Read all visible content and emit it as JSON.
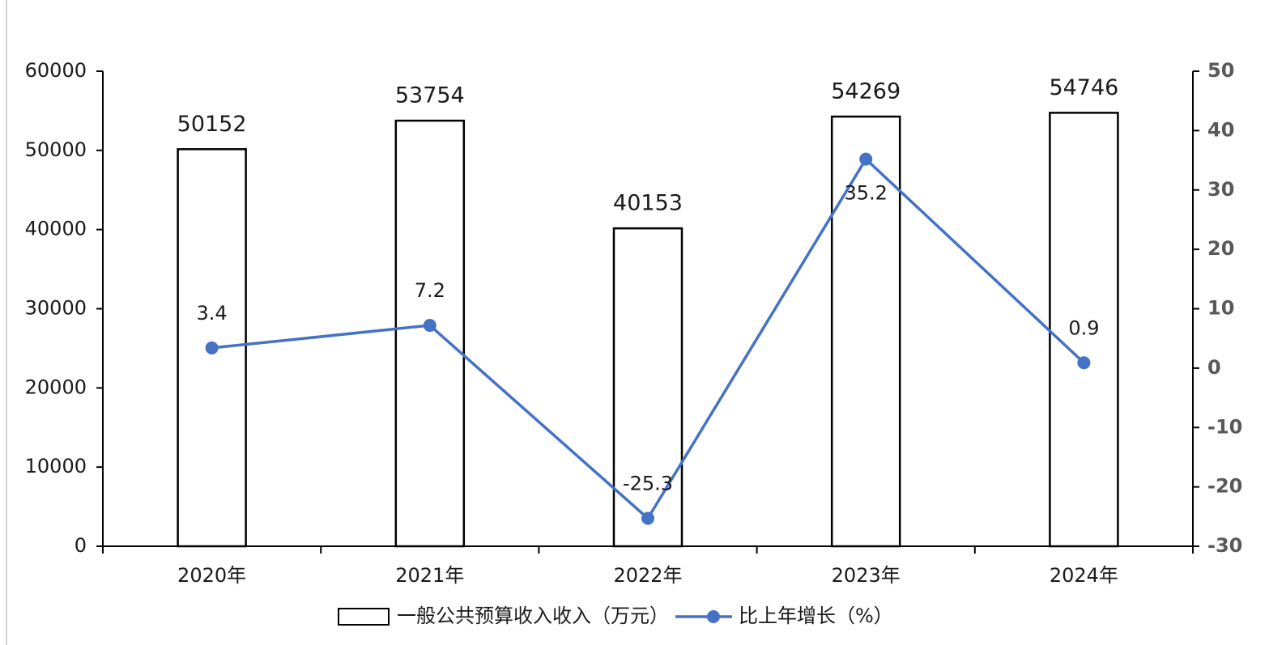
{
  "chart_data": {
    "type": "bar",
    "categories": [
      "2020年",
      "2021年",
      "2022年",
      "2023年",
      "2024年"
    ],
    "series": [
      {
        "name": "一般公共预算收入收入（万元）",
        "type": "bar",
        "color": "#ffffff",
        "values": [
          50152,
          53754,
          40153,
          54269,
          54746
        ]
      },
      {
        "name": "比上年增长（%）",
        "type": "line",
        "color": "#4472c4",
        "axis": "y2",
        "values": [
          3.4,
          7.2,
          -25.3,
          35.2,
          0.9
        ]
      }
    ],
    "ylim": [
      0,
      60000
    ],
    "yticks": [
      0,
      10000,
      20000,
      30000,
      40000,
      50000,
      60000
    ],
    "y2lim": [
      -30,
      50
    ],
    "y2ticks": [
      -30,
      -20,
      -10,
      0,
      10,
      20,
      30,
      40,
      50
    ],
    "legend": "bottom"
  }
}
